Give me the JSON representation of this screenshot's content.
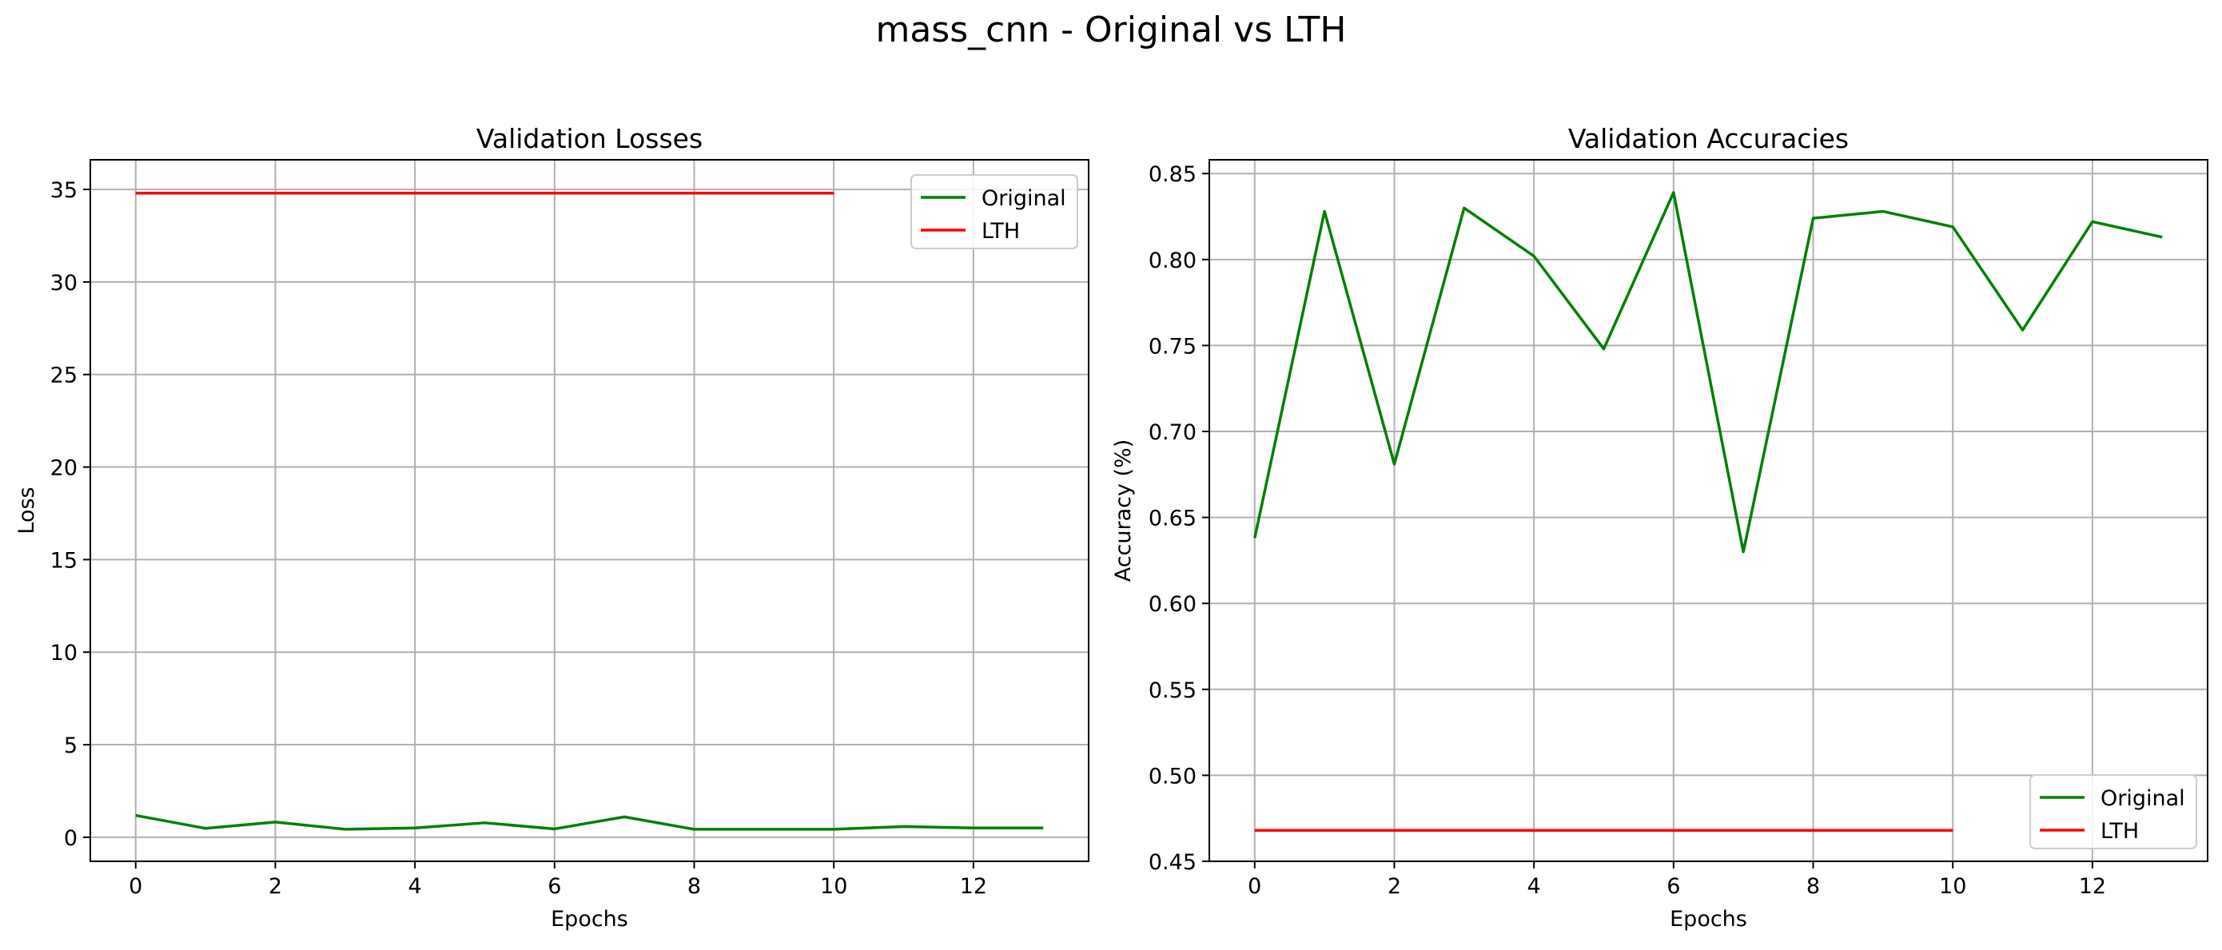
{
  "figure_title": "mass_cnn - Original vs LTH",
  "colors": {
    "original": "#008000",
    "lth": "#ff0000",
    "grid": "#b0b0b0"
  },
  "chart_data": [
    {
      "type": "line",
      "title": "Validation Losses",
      "xlabel": "Epochs",
      "ylabel": "Loss",
      "xlim": [
        -0.65,
        13.65
      ],
      "ylim": [
        -1.3,
        36.6
      ],
      "xticks": [
        0,
        2,
        4,
        6,
        8,
        10,
        12
      ],
      "yticks": [
        0,
        5,
        10,
        15,
        20,
        25,
        30,
        35
      ],
      "grid": true,
      "legend": {
        "position": "top-right",
        "entries": [
          "Original",
          "LTH"
        ]
      },
      "series": [
        {
          "name": "Original",
          "color": "#008000",
          "x": [
            0,
            1,
            2,
            3,
            4,
            5,
            6,
            7,
            8,
            9,
            10,
            11,
            12,
            13
          ],
          "y": [
            1.18,
            0.48,
            0.82,
            0.43,
            0.5,
            0.78,
            0.45,
            1.1,
            0.43,
            0.43,
            0.43,
            0.58,
            0.5,
            0.5
          ]
        },
        {
          "name": "LTH",
          "color": "#ff0000",
          "x": [
            0,
            1,
            2,
            3,
            4,
            5,
            6,
            7,
            8,
            9,
            10
          ],
          "y": [
            34.8,
            34.8,
            34.8,
            34.8,
            34.8,
            34.8,
            34.8,
            34.8,
            34.8,
            34.8,
            34.8
          ]
        }
      ]
    },
    {
      "type": "line",
      "title": "Validation Accuracies",
      "xlabel": "Epochs",
      "ylabel": "Accuracy (%)",
      "xlim": [
        -0.65,
        13.65
      ],
      "ylim": [
        0.45,
        0.858
      ],
      "xticks": [
        0,
        2,
        4,
        6,
        8,
        10,
        12
      ],
      "yticks": [
        0.45,
        0.5,
        0.55,
        0.6,
        0.65,
        0.7,
        0.75,
        0.8,
        0.85
      ],
      "ytick_labels": [
        "0.45",
        "0.50",
        "0.55",
        "0.60",
        "0.65",
        "0.70",
        "0.75",
        "0.80",
        "0.85"
      ],
      "grid": true,
      "legend": {
        "position": "bottom-right",
        "entries": [
          "Original",
          "LTH"
        ]
      },
      "series": [
        {
          "name": "Original",
          "color": "#008000",
          "x": [
            0,
            1,
            2,
            3,
            4,
            5,
            6,
            7,
            8,
            9,
            10,
            11,
            12,
            13
          ],
          "y": [
            0.638,
            0.828,
            0.681,
            0.83,
            0.802,
            0.748,
            0.839,
            0.63,
            0.824,
            0.828,
            0.819,
            0.759,
            0.822,
            0.813
          ]
        },
        {
          "name": "LTH",
          "color": "#ff0000",
          "x": [
            0,
            1,
            2,
            3,
            4,
            5,
            6,
            7,
            8,
            9,
            10
          ],
          "y": [
            0.468,
            0.468,
            0.468,
            0.468,
            0.468,
            0.468,
            0.468,
            0.468,
            0.468,
            0.468,
            0.468
          ]
        }
      ]
    }
  ]
}
